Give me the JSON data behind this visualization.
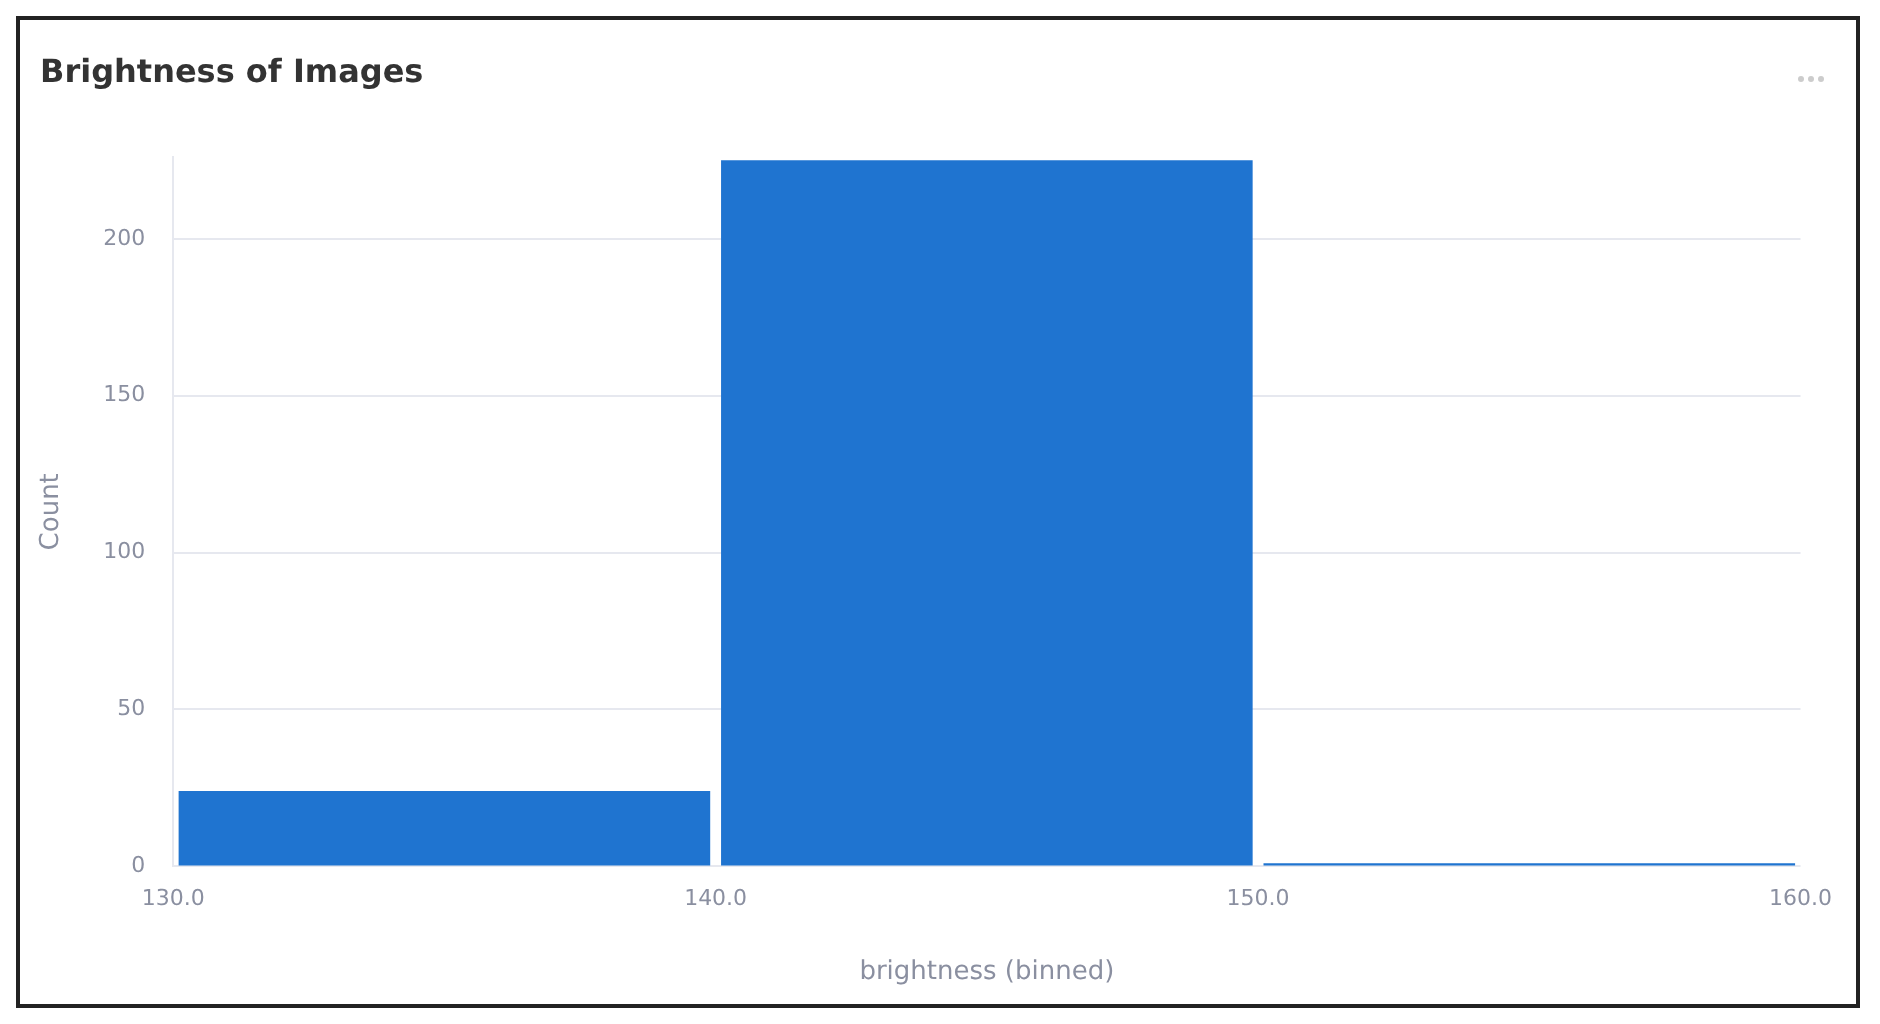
{
  "chart_data": {
    "type": "histogram",
    "title": "Brightness of Images",
    "xlabel": "brightness (binned)",
    "ylabel": "Count",
    "bins": [
      130,
      140,
      150,
      160
    ],
    "values": [
      24,
      225,
      1
    ],
    "color": "#1f74d0",
    "xlim": [
      130,
      160
    ],
    "xticks": [
      {
        "value": 130,
        "label": "130.0"
      },
      {
        "value": 140,
        "label": "140.0"
      },
      {
        "value": 150,
        "label": "150.0"
      },
      {
        "value": 160,
        "label": "160.0"
      }
    ],
    "ylim": [
      0,
      226
    ],
    "yticks": [
      0,
      50,
      100,
      150,
      200
    ],
    "grid": "y",
    "legend": false
  }
}
